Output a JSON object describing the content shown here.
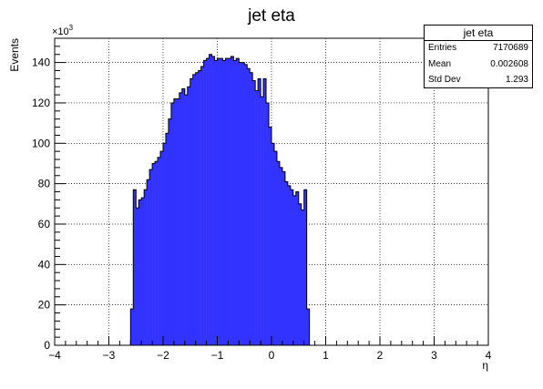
{
  "chart_data": {
    "type": "bar",
    "title": "jet eta",
    "xlabel": "η",
    "ylabel": "Events",
    "y_multiplier_label": "×10",
    "y_multiplier_exponent": "3",
    "xlim": [
      -4,
      4
    ],
    "ylim": [
      0,
      152
    ],
    "grid": true,
    "x_ticks": [
      -4,
      -3,
      -2,
      -1,
      0,
      1,
      2,
      3,
      4
    ],
    "x_tick_labels": [
      "−4",
      "−3",
      "−2",
      "−1",
      "0",
      "1",
      "2",
      "3",
      "4"
    ],
    "y_ticks": [
      0,
      20,
      40,
      60,
      80,
      100,
      120,
      140
    ],
    "y_tick_labels": [
      "0",
      "20",
      "40",
      "60",
      "80",
      "100",
      "120",
      "140"
    ],
    "bin_low": -2.6,
    "bin_width": 0.05,
    "fill_color": "#3333ff",
    "values": [
      18,
      77,
      68,
      72,
      73,
      77,
      82,
      87,
      90,
      91,
      93,
      96,
      100,
      105,
      112,
      120,
      122,
      122,
      125,
      127,
      124,
      128,
      132,
      134,
      135,
      136,
      138,
      141,
      142,
      144,
      143,
      141,
      142,
      142,
      141,
      142,
      142,
      143,
      141,
      142,
      140,
      140,
      139,
      137,
      135,
      131,
      126,
      132,
      123,
      132,
      120,
      108,
      100,
      96,
      91,
      88,
      86,
      81,
      79,
      77,
      74,
      76,
      70,
      67,
      77,
      18
    ]
  },
  "stats_box": {
    "title": "jet eta",
    "entries_label": "Entries",
    "entries_value": "7170689",
    "mean_label": "Mean",
    "mean_value": "0.002608",
    "stddev_label": "Std Dev",
    "stddev_value": "1.293"
  }
}
